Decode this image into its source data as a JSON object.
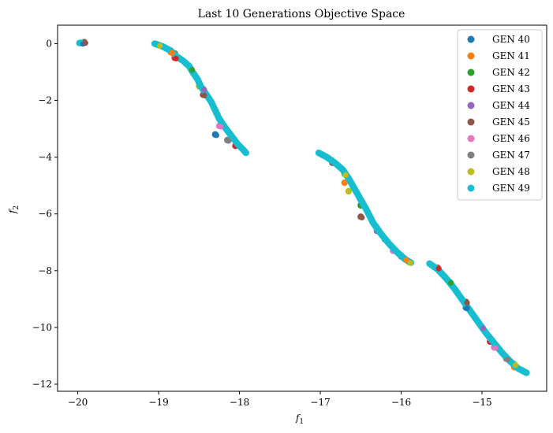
{
  "chart_data": {
    "type": "scatter",
    "title": "Last 10 Generations Objective Space",
    "xlabel": "f",
    "xlabel_sub": "1",
    "ylabel": "f",
    "ylabel_sub": "2",
    "xlim": [
      -20.25,
      -14.2
    ],
    "ylim": [
      -12.25,
      0.65
    ],
    "xticks": [
      {
        "value": -20,
        "label": "−20"
      },
      {
        "value": -19,
        "label": "−19"
      },
      {
        "value": -18,
        "label": "−18"
      },
      {
        "value": -17,
        "label": "−17"
      },
      {
        "value": -16,
        "label": "−16"
      },
      {
        "value": -15,
        "label": "−15"
      }
    ],
    "yticks": [
      {
        "value": 0,
        "label": "0"
      },
      {
        "value": -2,
        "label": "−2"
      },
      {
        "value": -4,
        "label": "−4"
      },
      {
        "value": -6,
        "label": "−6"
      },
      {
        "value": -8,
        "label": "−8"
      },
      {
        "value": -10,
        "label": "−10"
      },
      {
        "value": -12,
        "label": "−12"
      }
    ],
    "grid": false,
    "legend_position": "top-right",
    "series": [
      {
        "name": "GEN 40",
        "color": "#1f77b4",
        "points": [
          [
            -19.95,
            0.02
          ],
          [
            -18.95,
            -0.1
          ],
          [
            -18.3,
            -3.2
          ],
          [
            -16.2,
            -6.9
          ],
          [
            -15.2,
            -9.3
          ]
        ]
      },
      {
        "name": "GEN 41",
        "color": "#ff7f0e",
        "points": [
          [
            -18.85,
            -0.3
          ],
          [
            -16.7,
            -4.9
          ],
          [
            -15.95,
            -7.6
          ],
          [
            -14.6,
            -11.4
          ]
        ]
      },
      {
        "name": "GEN 42",
        "color": "#2ca02c",
        "points": [
          [
            -18.6,
            -0.9
          ],
          [
            -16.5,
            -5.7
          ],
          [
            -15.4,
            -8.4
          ]
        ]
      },
      {
        "name": "GEN 43",
        "color": "#d62728",
        "points": [
          [
            -18.8,
            -0.5
          ],
          [
            -18.05,
            -3.6
          ],
          [
            -15.55,
            -7.9
          ],
          [
            -14.9,
            -10.5
          ]
        ]
      },
      {
        "name": "GEN 44",
        "color": "#9467bd",
        "points": [
          [
            -18.45,
            -1.6
          ],
          [
            -16.3,
            -6.6
          ],
          [
            -15.0,
            -10.0
          ]
        ]
      },
      {
        "name": "GEN 45",
        "color": "#8c564b",
        "points": [
          [
            -19.92,
            0.05
          ],
          [
            -18.8,
            -0.35
          ],
          [
            -18.45,
            -1.8
          ],
          [
            -16.85,
            -4.2
          ],
          [
            -16.5,
            -6.1
          ],
          [
            -15.5,
            -8.1
          ],
          [
            -15.2,
            -9.1
          ]
        ]
      },
      {
        "name": "GEN 46",
        "color": "#e377c2",
        "points": [
          [
            -18.25,
            -2.9
          ],
          [
            -16.1,
            -7.3
          ],
          [
            -14.85,
            -10.7
          ]
        ]
      },
      {
        "name": "GEN 47",
        "color": "#7f7f7f",
        "points": [
          [
            -18.15,
            -3.4
          ],
          [
            -16.0,
            -7.5
          ],
          [
            -14.7,
            -11.1
          ]
        ]
      },
      {
        "name": "GEN 48",
        "color": "#bcbd22",
        "points": [
          [
            -19.0,
            -0.05
          ],
          [
            -18.5,
            -1.5
          ],
          [
            -16.7,
            -4.6
          ],
          [
            -16.65,
            -5.2
          ],
          [
            -15.9,
            -7.7
          ],
          [
            -15.2,
            -9.2
          ],
          [
            -14.6,
            -11.3
          ]
        ]
      },
      {
        "name": "GEN 49",
        "color": "#17becf",
        "points": []
      }
    ],
    "gen49_segments": [
      [
        [
          -19.98,
          0.02
        ],
        [
          -19.96,
          0.03
        ]
      ],
      [
        [
          -19.05,
          0.0
        ],
        [
          -18.95,
          -0.1
        ],
        [
          -18.85,
          -0.25
        ],
        [
          -18.78,
          -0.45
        ],
        [
          -18.7,
          -0.6
        ],
        [
          -18.62,
          -0.8
        ],
        [
          -18.58,
          -1.0
        ],
        [
          -18.52,
          -1.25
        ],
        [
          -18.48,
          -1.5
        ],
        [
          -18.42,
          -1.75
        ],
        [
          -18.35,
          -2.05
        ],
        [
          -18.3,
          -2.35
        ],
        [
          -18.25,
          -2.65
        ],
        [
          -18.18,
          -2.95
        ],
        [
          -18.1,
          -3.25
        ],
        [
          -18.02,
          -3.55
        ],
        [
          -17.95,
          -3.75
        ],
        [
          -17.92,
          -3.85
        ]
      ],
      [
        [
          -17.02,
          -3.85
        ],
        [
          -16.92,
          -4.0
        ],
        [
          -16.82,
          -4.2
        ],
        [
          -16.72,
          -4.45
        ],
        [
          -16.65,
          -4.75
        ],
        [
          -16.58,
          -5.1
        ],
        [
          -16.5,
          -5.5
        ],
        [
          -16.42,
          -5.9
        ],
        [
          -16.35,
          -6.3
        ],
        [
          -16.25,
          -6.7
        ],
        [
          -16.15,
          -7.05
        ],
        [
          -16.05,
          -7.35
        ],
        [
          -15.95,
          -7.6
        ],
        [
          -15.88,
          -7.72
        ]
      ],
      [
        [
          -15.65,
          -7.75
        ],
        [
          -15.55,
          -7.95
        ],
        [
          -15.45,
          -8.25
        ],
        [
          -15.35,
          -8.6
        ],
        [
          -15.25,
          -9.0
        ],
        [
          -15.15,
          -9.4
        ],
        [
          -15.05,
          -9.8
        ],
        [
          -14.95,
          -10.2
        ],
        [
          -14.85,
          -10.55
        ],
        [
          -14.75,
          -10.9
        ],
        [
          -14.65,
          -11.2
        ],
        [
          -14.55,
          -11.45
        ],
        [
          -14.45,
          -11.6
        ]
      ]
    ]
  }
}
